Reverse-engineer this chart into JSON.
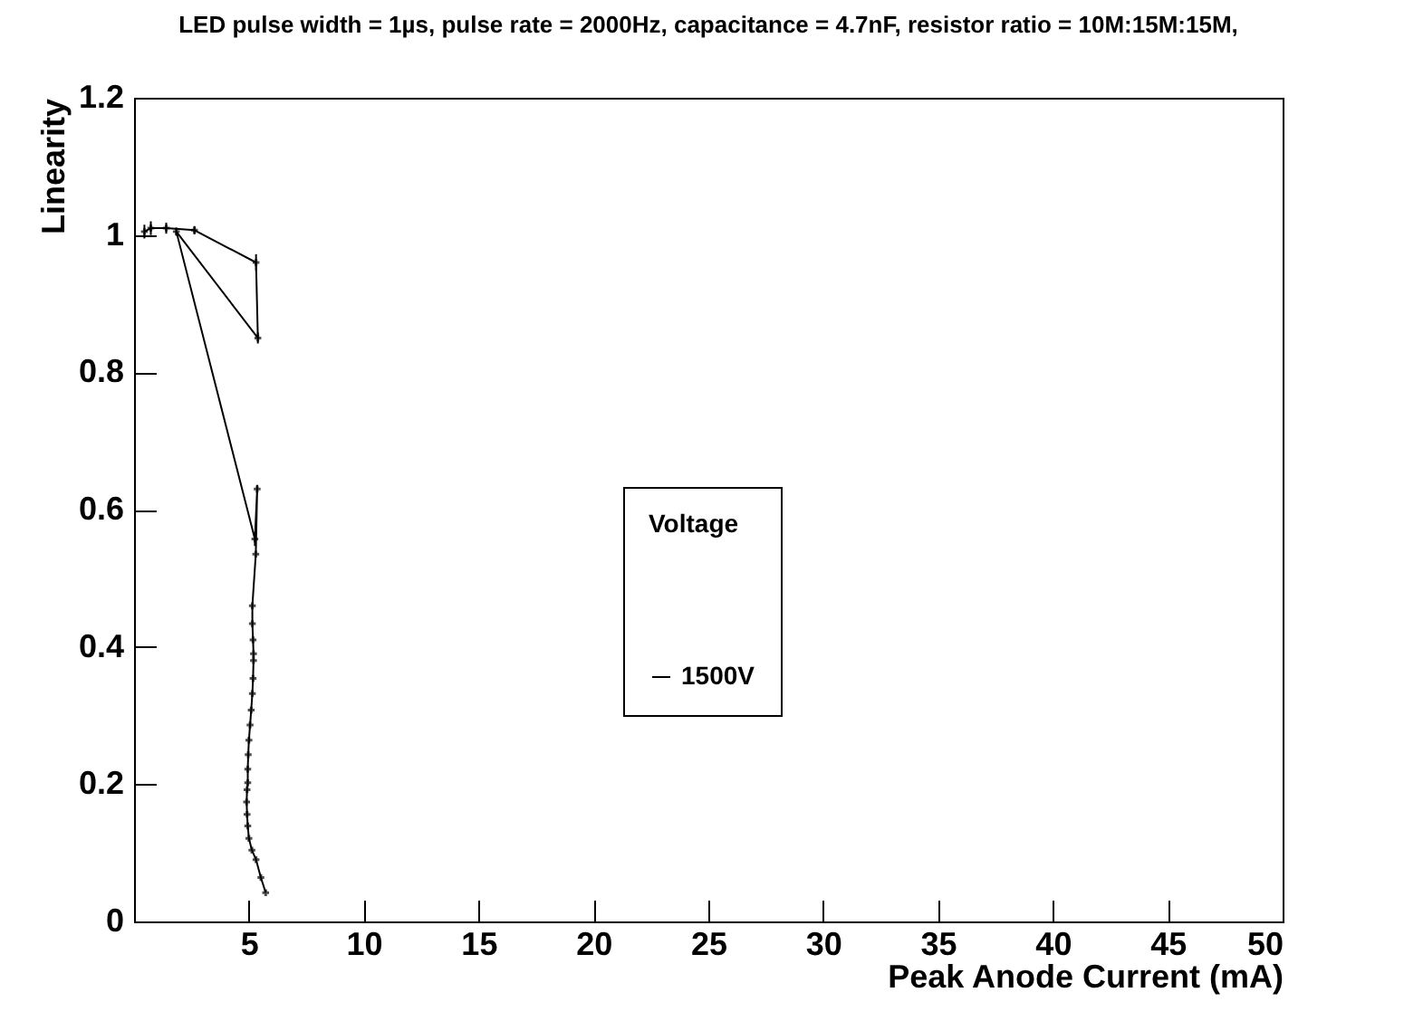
{
  "chart_data": {
    "type": "line",
    "title": "LED pulse width = 1µs, pulse rate = 2000Hz, capacitance = 4.7nF, resistor ratio = 10M:15M:15M,",
    "xlabel": "Peak Anode Current (mA)",
    "ylabel": "Linearity",
    "legend_title": "Voltage",
    "x": [
      0.45,
      0.73,
      1.4,
      2.63,
      5.31,
      5.39,
      1.84,
      5.26,
      5.36,
      5.3,
      5.15,
      5.15,
      5.18,
      5.2,
      5.2,
      5.18,
      5.15,
      5.1,
      5.05,
      5.0,
      4.97,
      4.95,
      4.95,
      4.92,
      4.9,
      4.92,
      4.95,
      5.0,
      5.13,
      5.31,
      5.52,
      5.73
    ],
    "series": [
      {
        "name": "1500V",
        "color": "#000000",
        "values": [
          1.005,
          1.01,
          1.01,
          1.007,
          0.96,
          0.85,
          1.005,
          0.557,
          0.63,
          0.535,
          0.46,
          0.434,
          0.41,
          0.39,
          0.38,
          0.354,
          0.332,
          0.308,
          0.286,
          0.264,
          0.243,
          0.222,
          0.202,
          0.192,
          0.174,
          0.156,
          0.139,
          0.121,
          0.104,
          0.09,
          0.064,
          0.042
        ],
        "errors": [
          0.01,
          0.01,
          0.008,
          0.006,
          0.012,
          0.008,
          0.006,
          0.01,
          0.006,
          null,
          null,
          null,
          null,
          null,
          null,
          null,
          null,
          null,
          null,
          null,
          null,
          null,
          null,
          null,
          null,
          null,
          null,
          null,
          null,
          null,
          null,
          null
        ]
      }
    ],
    "xlim": [
      0,
      50
    ],
    "ylim": [
      0,
      1.2
    ],
    "xticks": [
      {
        "value": 0,
        "label": null
      },
      5,
      10,
      15,
      20,
      25,
      30,
      35,
      40,
      45,
      50
    ],
    "yticks": [
      0,
      0.2,
      0.4,
      0.6,
      0.8,
      1,
      1.2
    ],
    "grid": false,
    "legend": "right",
    "marker": "cross",
    "line_style": "solid"
  }
}
